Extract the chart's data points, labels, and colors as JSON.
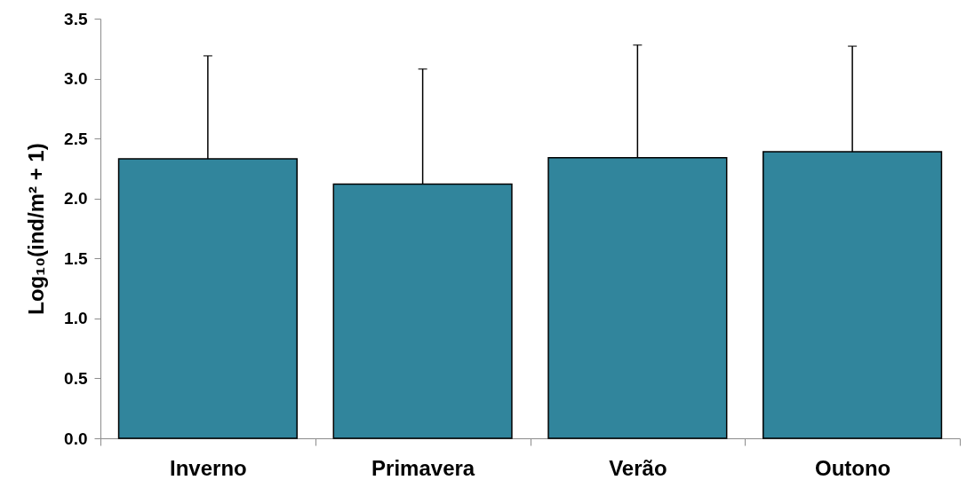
{
  "chart_data": {
    "type": "bar",
    "ylabel": "Log₁₀(ind/m² + 1)",
    "categories": [
      "Inverno",
      "Primavera",
      "Verão",
      "Outono"
    ],
    "values": [
      2.33,
      2.12,
      2.34,
      2.39
    ],
    "errors": [
      [
        2.33,
        3.19
      ],
      [
        2.12,
        3.08
      ],
      [
        2.34,
        3.28
      ],
      [
        2.39,
        3.27
      ]
    ],
    "color": "#31859c",
    "ylim": [
      0,
      3.5
    ],
    "yticks": [
      {
        "value": 0,
        "label": "0.0"
      },
      {
        "value": 0.5,
        "label": "0.5"
      },
      {
        "value": 1,
        "label": "1.0"
      },
      {
        "value": 1.5,
        "label": "1.5"
      },
      {
        "value": 2,
        "label": "2.0"
      },
      {
        "value": 2.5,
        "label": "2.5"
      },
      {
        "value": 3,
        "label": "3.0"
      },
      {
        "value": 3.5,
        "label": "3.5"
      }
    ],
    "grid": false
  }
}
